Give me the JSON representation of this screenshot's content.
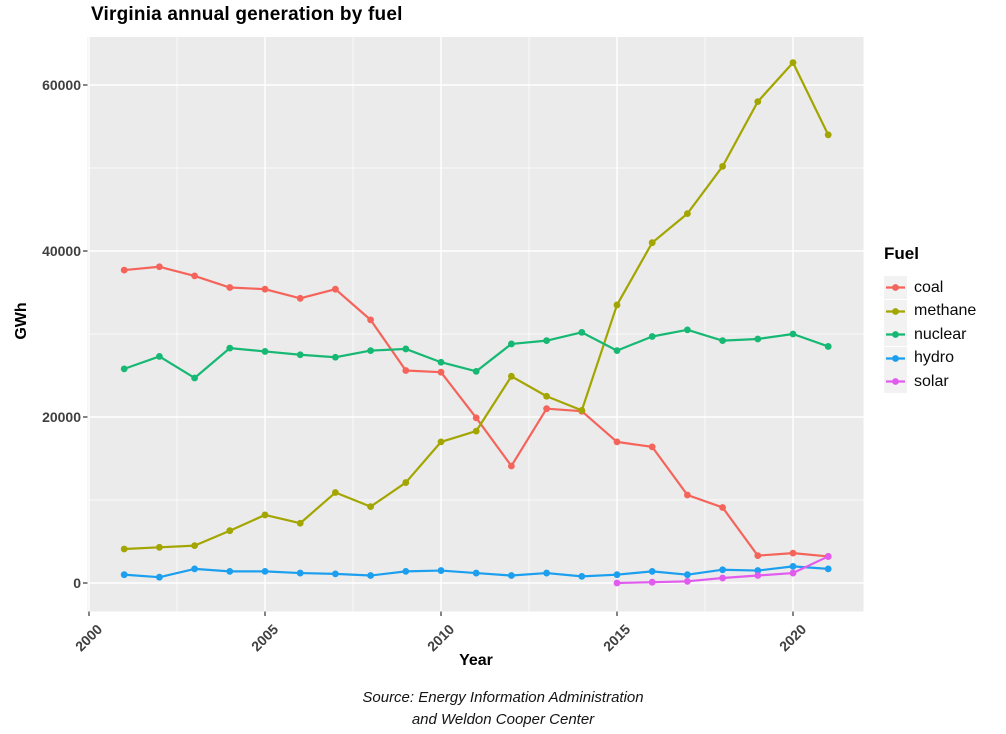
{
  "title": "Virginia annual generation by fuel",
  "axes": {
    "x_label": "Year",
    "y_label": "GWh"
  },
  "legend": {
    "title": "Fuel",
    "entries": [
      "coal",
      "methane",
      "nuclear",
      "hydro",
      "solar"
    ]
  },
  "caption": {
    "line1": "Source: Energy Information Administration",
    "line2": "and Weldon Cooper Center"
  },
  "colors": {
    "panel_background": "#EBEBEB",
    "gridline": "#FFFFFF",
    "tick_mark": "#333333",
    "tick_label": "#404040",
    "legend_key_background": "#F2F2F2",
    "coal": "#F4645B",
    "methane": "#A3A500",
    "nuclear": "#16B873",
    "hydro": "#1B9FEE",
    "solar": "#E25BEF"
  },
  "chart_data": {
    "type": "line",
    "title": "Virginia annual generation by fuel",
    "xlabel": "Year",
    "ylabel": "GWh",
    "legend_title": "Fuel",
    "legend_position": "right",
    "grid": "white major and minor gridlines on grey panel",
    "x": [
      2001,
      2002,
      2003,
      2004,
      2005,
      2006,
      2007,
      2008,
      2009,
      2010,
      2011,
      2012,
      2013,
      2014,
      2015,
      2016,
      2017,
      2018,
      2019,
      2020,
      2021
    ],
    "series": [
      {
        "name": "coal",
        "color": "#F4645B",
        "values": [
          37700,
          38100,
          37000,
          35600,
          35400,
          34300,
          35400,
          31700,
          25600,
          25400,
          19900,
          14100,
          21000,
          20700,
          17000,
          16400,
          10600,
          9100,
          3300,
          3600,
          3200
        ]
      },
      {
        "name": "methane",
        "color": "#A3A500",
        "values": [
          4100,
          4300,
          4500,
          6300,
          8200,
          7200,
          10900,
          9200,
          12100,
          17000,
          18300,
          24900,
          22500,
          20800,
          33500,
          41000,
          44500,
          50200,
          58000,
          62700,
          54000
        ]
      },
      {
        "name": "nuclear",
        "color": "#16B873",
        "values": [
          25800,
          27300,
          24700,
          28300,
          27900,
          27500,
          27200,
          28000,
          28200,
          26600,
          25500,
          28800,
          29200,
          30200,
          28000,
          29700,
          30500,
          29200,
          29400,
          30000,
          28500
        ]
      },
      {
        "name": "hydro",
        "color": "#1B9FEE",
        "values": [
          1000,
          700,
          1700,
          1400,
          1400,
          1200,
          1100,
          900,
          1400,
          1500,
          1200,
          900,
          1200,
          800,
          1000,
          1400,
          1000,
          1600,
          1500,
          2000,
          1700
        ]
      },
      {
        "name": "solar",
        "color": "#E25BEF",
        "values": [
          null,
          null,
          null,
          null,
          null,
          null,
          null,
          null,
          null,
          null,
          null,
          null,
          null,
          null,
          0,
          100,
          200,
          600,
          900,
          1200,
          3200
        ]
      }
    ],
    "xlim": [
      2000,
      2022
    ],
    "ylim": [
      -3100,
      65800
    ],
    "x_major_ticks": [
      2000,
      2005,
      2010,
      2015,
      2020
    ],
    "x_minor_ticks": [
      2002.5,
      2007.5,
      2012.5,
      2017.5
    ],
    "y_major_ticks": [
      0,
      20000,
      40000,
      60000
    ],
    "y_minor_ticks": [
      10000,
      30000,
      50000
    ]
  }
}
